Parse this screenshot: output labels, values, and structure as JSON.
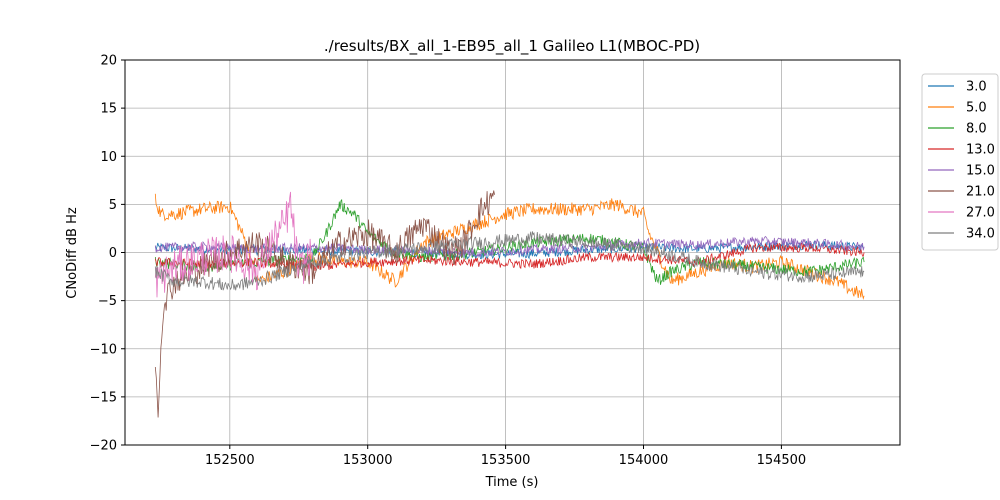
{
  "chart_data": {
    "type": "line",
    "title": "./results/BX_all_1-EB95_all_1 Galileo L1(MBOC-PD)",
    "xlabel": "Time (s)",
    "ylabel": "CNoDiff dB Hz",
    "xlim": [
      152120,
      154930
    ],
    "ylim": [
      -20,
      20
    ],
    "xticks": [
      152500,
      153000,
      153500,
      154000,
      154500
    ],
    "yticks": [
      -20,
      -15,
      -10,
      -5,
      0,
      5,
      10,
      15,
      20
    ],
    "grid": true,
    "legend_position": "outside-right",
    "colors": [
      "#1f77b4",
      "#ff7f0e",
      "#2ca02c",
      "#d62728",
      "#9467bd",
      "#8c564b",
      "#e377c2",
      "#7f7f7f"
    ],
    "series": [
      {
        "name": "3.0",
        "x": [
          152230,
          152500,
          152800,
          153000,
          153200,
          153400,
          153600,
          153800,
          154000,
          154200,
          154400,
          154600,
          154800
        ],
        "y": [
          0.5,
          0.3,
          0.2,
          0.1,
          0.0,
          -0.2,
          -0.1,
          0.3,
          0.5,
          0.4,
          0.6,
          0.8,
          0.5
        ],
        "noise": 0.5
      },
      {
        "name": "5.0",
        "x": [
          152230,
          152250,
          152300,
          152400,
          152500,
          152560,
          152600,
          152700,
          152800,
          152900,
          153000,
          153050,
          153100,
          153200,
          153400,
          153500,
          153600,
          153800,
          153900,
          154000,
          154020,
          154100,
          154200,
          154300,
          154400,
          154500,
          154600,
          154700,
          154760,
          154800
        ],
        "y": [
          5.5,
          4.0,
          4.0,
          4.5,
          4.8,
          1.0,
          -3.0,
          -2.0,
          -0.5,
          -1.0,
          -1.0,
          -2.0,
          -3.0,
          1.0,
          3.0,
          4.0,
          4.5,
          4.5,
          5.0,
          4.0,
          2.0,
          -3.0,
          -2.0,
          -1.0,
          -1.5,
          -1.0,
          -2.0,
          -3.0,
          -4.0,
          -4.5
        ],
        "noise": 0.7
      },
      {
        "name": "8.0",
        "x": [
          152230,
          152400,
          152600,
          152800,
          152850,
          152900,
          152950,
          153000,
          153100,
          153200,
          153400,
          153600,
          153800,
          154000,
          154050,
          154100,
          154200,
          154400,
          154600,
          154800
        ],
        "y": [
          -1.0,
          -1.5,
          -1.0,
          -0.5,
          2.0,
          5.0,
          4.0,
          2.0,
          0.0,
          -0.5,
          0.0,
          1.0,
          1.5,
          0.5,
          -3.0,
          -2.0,
          -1.0,
          -1.5,
          -2.0,
          -1.0
        ],
        "noise": 0.6
      },
      {
        "name": "13.0",
        "x": [
          152230,
          152400,
          152600,
          152800,
          153000,
          153200,
          153400,
          153600,
          153800,
          154000,
          154200,
          154400,
          154600,
          154800
        ],
        "y": [
          -1.0,
          -1.2,
          -1.0,
          -1.5,
          -1.0,
          -0.8,
          -1.0,
          -1.2,
          -0.5,
          -0.5,
          -1.0,
          0.5,
          0.5,
          0.0
        ],
        "noise": 0.5
      },
      {
        "name": "15.0",
        "x": [
          152230,
          152400,
          152600,
          152800,
          153000,
          153200,
          153400,
          153600,
          153800,
          154000,
          154200,
          154400,
          154600,
          154800
        ],
        "y": [
          0.5,
          0.6,
          0.4,
          0.5,
          0.3,
          0.2,
          0.0,
          0.3,
          0.5,
          1.0,
          0.8,
          1.2,
          1.0,
          0.6
        ],
        "noise": 0.5
      },
      {
        "name": "21.0",
        "x": [
          152230,
          152240,
          152250,
          152260,
          152300,
          152400,
          152500,
          152600,
          152700,
          152800,
          152900,
          153000,
          153100,
          153200,
          153300,
          153350,
          153400,
          153460
        ],
        "y": [
          -12.0,
          -16.0,
          -10.0,
          -5.0,
          -3.0,
          -1.5,
          0.0,
          1.0,
          -1.0,
          -2.0,
          1.0,
          2.0,
          0.0,
          3.0,
          0.0,
          1.0,
          4.0,
          6.0
        ],
        "noise": 1.5
      },
      {
        "name": "27.0",
        "x": [
          152230,
          152300,
          152400,
          152500,
          152550,
          152600,
          152650,
          152700,
          152720,
          152750,
          152800
        ],
        "y": [
          -3.0,
          -1.5,
          -0.5,
          0.0,
          -1.0,
          -2.0,
          1.0,
          3.0,
          5.0,
          -2.0,
          0.0
        ],
        "noise": 2.0
      },
      {
        "name": "34.0",
        "x": [
          152230,
          152300,
          152400,
          152500,
          152600,
          152800,
          153000,
          153200,
          153400,
          153600,
          153800,
          154000,
          154200,
          154400,
          154600,
          154800
        ],
        "y": [
          -2.0,
          -3.0,
          -3.0,
          -3.5,
          -3.0,
          -1.0,
          0.0,
          0.5,
          1.0,
          1.5,
          1.0,
          0.5,
          -1.0,
          -2.0,
          -2.5,
          -2.0
        ],
        "noise": 0.7
      }
    ]
  }
}
